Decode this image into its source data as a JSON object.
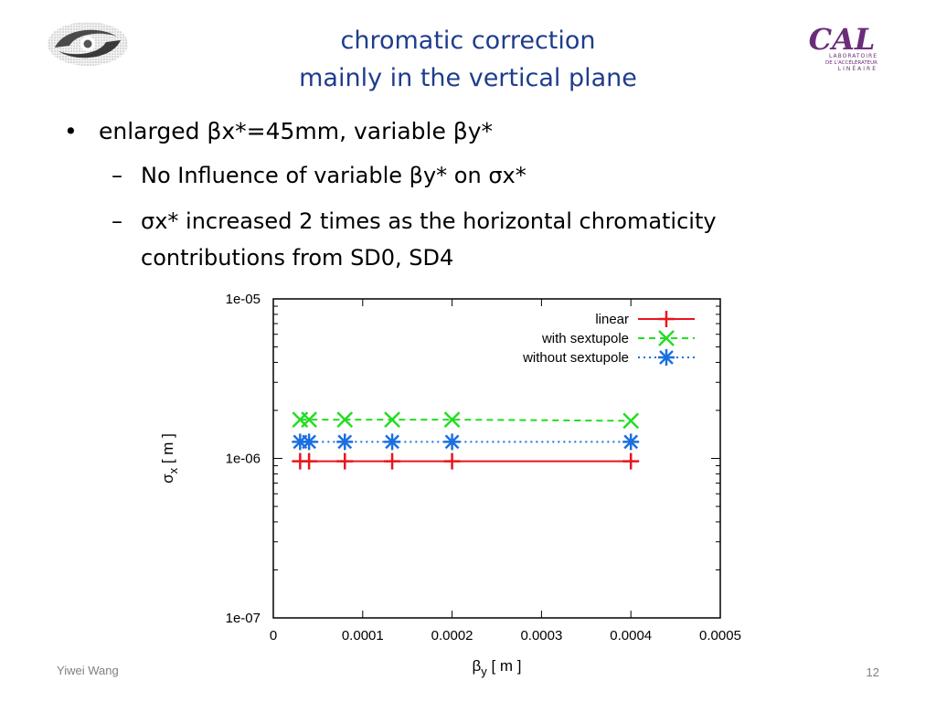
{
  "slide": {
    "title_line1": "chromatic correction",
    "title_line2": "mainly in the vertical plane",
    "bullet_main": "enlarged βx*=45mm, variable βy*",
    "sub_bullet_1": "No Influence of variable βy* on σx*",
    "sub_bullet_2_line1": "σx* increased 2 times as the horizontal chromaticity",
    "sub_bullet_2_line2": "contributions from SD0, SD4",
    "footer_author": "Yiwei Wang",
    "page_number": "12",
    "logo_right_text": "CAL",
    "logo_right_caption1": "LABORATOIRE",
    "logo_right_caption2": "DE L'ACCÉLÉRATEUR",
    "logo_right_caption3": "LINÉAIRE",
    "title_color": "#1f3d8c"
  },
  "chart_data": {
    "type": "line",
    "xlabel_main": "β",
    "xlabel_sub": "y",
    "xlabel_unit": " [ m ]",
    "ylabel_main": "σ",
    "ylabel_sub": "x",
    "ylabel_unit": " [ m ]",
    "xlim": [
      0,
      0.0005
    ],
    "ylim": [
      1e-07,
      1e-05
    ],
    "yscale": "log",
    "x_ticks": [
      0,
      0.0001,
      0.0002,
      0.0003,
      0.0004,
      0.0005
    ],
    "x_tick_labels": [
      "0",
      "0.0001",
      "0.0002",
      "0.0003",
      "0.0004",
      "0.0005"
    ],
    "y_ticks": [
      1e-07,
      1e-06,
      1e-05
    ],
    "y_tick_labels": [
      "1e-07",
      "1e-06",
      "1e-05"
    ],
    "legend_position": "top-right",
    "x": [
      3e-05,
      4e-05,
      8e-05,
      0.000133,
      0.0002,
      0.0004
    ],
    "series": [
      {
        "name": "linear",
        "color": "#e8161c",
        "marker": "plus",
        "dash": "solid",
        "values": [
          9.6e-07,
          9.6e-07,
          9.6e-07,
          9.6e-07,
          9.6e-07,
          9.6e-07
        ]
      },
      {
        "name": "with sextupole",
        "color": "#22dd22",
        "marker": "cross",
        "dash": "dashed",
        "values": [
          1.75e-06,
          1.75e-06,
          1.75e-06,
          1.75e-06,
          1.75e-06,
          1.72e-06
        ]
      },
      {
        "name": "without sextupole",
        "color": "#1a6fe0",
        "marker": "star",
        "dash": "dotted",
        "values": [
          1.27e-06,
          1.27e-06,
          1.27e-06,
          1.27e-06,
          1.27e-06,
          1.27e-06
        ]
      }
    ]
  }
}
